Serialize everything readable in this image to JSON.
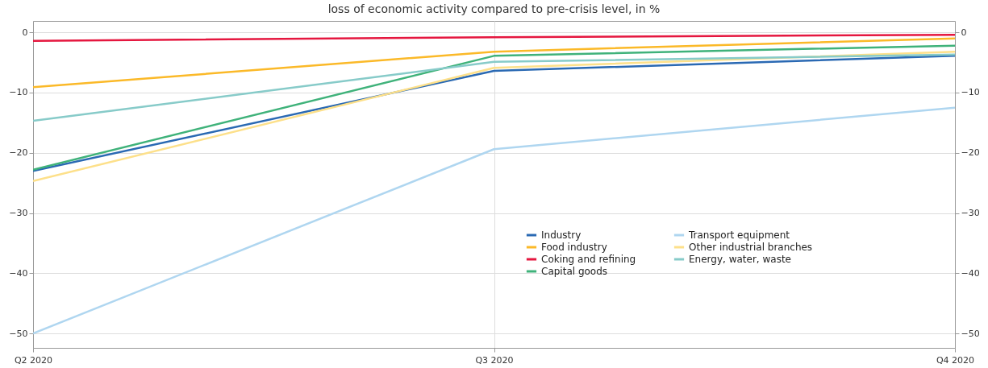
{
  "chart_data": {
    "type": "line",
    "title": "loss of economic activity compared to pre-crisis level, in %",
    "categories": [
      "Q2 2020",
      "Q3 2020",
      "Q4 2020"
    ],
    "series": [
      {
        "name": "Industry",
        "color": "#2a69b3",
        "values": [
          -23.0,
          -6.4,
          -3.9
        ]
      },
      {
        "name": "Food industry",
        "color": "#fbb928",
        "values": [
          -9.1,
          -3.2,
          -1.0
        ]
      },
      {
        "name": "Coking and refining",
        "color": "#e5173f",
        "values": [
          -1.4,
          -0.8,
          -0.4
        ]
      },
      {
        "name": "Capital goods",
        "color": "#3fb27a",
        "values": [
          -22.8,
          -3.9,
          -2.2
        ]
      },
      {
        "name": "Transport equipment",
        "color": "#afd6f0",
        "values": [
          -50.0,
          -19.4,
          -12.5
        ]
      },
      {
        "name": "Other industrial branches",
        "color": "#fde08a",
        "values": [
          -24.7,
          -5.9,
          -3.2
        ]
      },
      {
        "name": "Energy, water, waste",
        "color": "#87cbc9",
        "values": [
          -14.7,
          -4.9,
          -3.7
        ]
      }
    ],
    "ylim": [
      -52.4,
      1.9
    ],
    "yticks": [
      -50,
      -40,
      -30,
      -20,
      -10,
      0
    ],
    "y2lim": [
      -52.4,
      1.9
    ],
    "y2ticks": [
      -50,
      -40,
      -30,
      -20,
      -10,
      0
    ],
    "grid": true,
    "legend": "bottom right",
    "marker": "none",
    "line_style": "solid"
  }
}
